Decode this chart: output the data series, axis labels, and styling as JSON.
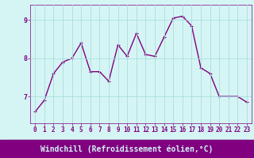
{
  "x": [
    0,
    1,
    2,
    3,
    4,
    5,
    6,
    7,
    8,
    9,
    10,
    11,
    12,
    13,
    14,
    15,
    16,
    17,
    18,
    19,
    20,
    21,
    22,
    23
  ],
  "y": [
    6.6,
    6.9,
    7.6,
    7.9,
    8.0,
    8.4,
    7.65,
    7.65,
    7.4,
    8.35,
    8.05,
    8.65,
    8.1,
    8.05,
    8.55,
    9.05,
    9.1,
    8.85,
    7.75,
    7.6,
    7.0,
    7.0,
    7.0,
    6.85
  ],
  "line_color": "#800080",
  "marker": "+",
  "marker_size": 3.5,
  "bg_color": "#d5f5f5",
  "grid_color": "#aadddd",
  "xlabel": "Windchill (Refroidissement éolien,°C)",
  "xlabel_color": "#800080",
  "xlabel_bg": "#800080",
  "xlim": [
    -0.5,
    23.5
  ],
  "ylim": [
    6.3,
    9.4
  ],
  "yticks": [
    7,
    8,
    9
  ],
  "xticks": [
    0,
    1,
    2,
    3,
    4,
    5,
    6,
    7,
    8,
    9,
    10,
    11,
    12,
    13,
    14,
    15,
    16,
    17,
    18,
    19,
    20,
    21,
    22,
    23
  ],
  "tick_color": "#800080",
  "tick_fontsize": 5.5,
  "xlabel_fontsize": 7.0,
  "line_width": 1.0,
  "fig_bg": "#d5f5f5",
  "bottom_bar_color": "#800080",
  "xlabel_text_color": "#d5f5f5"
}
